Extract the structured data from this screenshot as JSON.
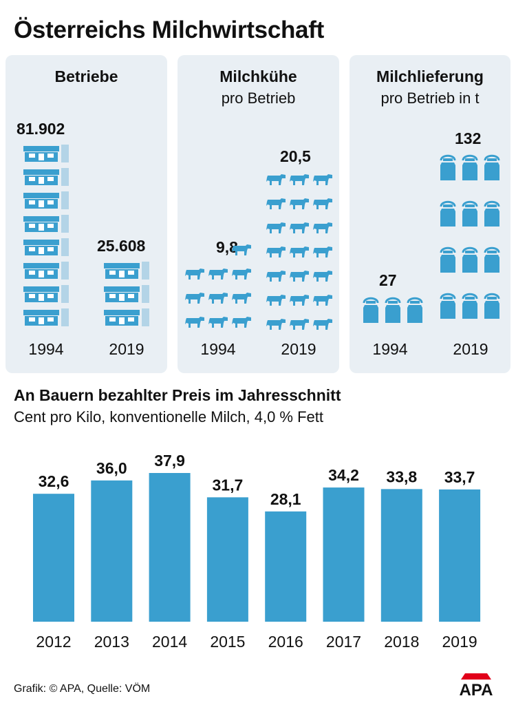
{
  "title": "Österreichs Milchwirtschaft",
  "colors": {
    "accent": "#3a9fcf",
    "light_accent": "#b3d4e7",
    "panel_bg": "#e9eff4",
    "logo_red": "#e1001a"
  },
  "panels": {
    "betriebe": {
      "title": "Betriebe",
      "subtitle": "",
      "icon": "farm-building-icon",
      "years": [
        "1994",
        "2019"
      ],
      "values": [
        "81.902",
        "25.608"
      ],
      "icon_counts": [
        8,
        3
      ]
    },
    "milchkuehe": {
      "title": "Milchkühe",
      "subtitle": "pro Betrieb",
      "icon": "cow-icon",
      "years": [
        "1994",
        "2019"
      ],
      "values": [
        "9,8",
        "20,5"
      ]
    },
    "milchlieferung": {
      "title": "Milchlieferung",
      "subtitle": "pro Betrieb in t",
      "icon": "milk-can-icon",
      "years": [
        "1994",
        "2019"
      ],
      "values": [
        "27",
        "132"
      ]
    }
  },
  "price_section": {
    "title": "An Bauern bezahlter Preis im Jahresschnitt",
    "subtitle": "Cent pro Kilo, konventionelle Milch, 4,0 % Fett"
  },
  "chart_data": {
    "type": "bar",
    "title": "An Bauern bezahlter Preis im Jahresschnitt",
    "ylabel": "Cent pro Kilo, konventionelle Milch, 4,0 % Fett",
    "categories": [
      "2012",
      "2013",
      "2014",
      "2015",
      "2016",
      "2017",
      "2018",
      "2019"
    ],
    "values": [
      32.6,
      36.0,
      37.9,
      31.7,
      28.1,
      34.2,
      33.8,
      33.7
    ],
    "value_labels": [
      "32,6",
      "36,0",
      "37,9",
      "31,7",
      "28,1",
      "34,2",
      "33,8",
      "33,7"
    ],
    "ylim": [
      0,
      37.9
    ],
    "grid": false
  },
  "footer": {
    "credit": "Grafik: © APA, Quelle: VÖM",
    "logo_text": "APA"
  }
}
